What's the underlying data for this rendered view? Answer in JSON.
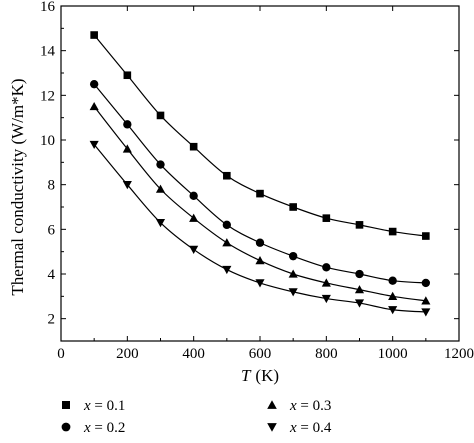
{
  "chart_data": {
    "type": "scatter",
    "title": "",
    "xlabel": {
      "var": "T",
      "unit": "(K)"
    },
    "ylabel": "Thermal conductivity (W/m*K)",
    "xlim": [
      0,
      1200
    ],
    "ylim": [
      1,
      16
    ],
    "xticks": [
      0,
      200,
      400,
      600,
      800,
      1000,
      1200
    ],
    "yticks": [
      2,
      4,
      6,
      8,
      10,
      12,
      14,
      16
    ],
    "grid": false,
    "legend_position": "bottom, outside plot",
    "has_fit_curves": true,
    "x": [
      100,
      200,
      300,
      400,
      500,
      600,
      700,
      800,
      900,
      1000,
      1100
    ],
    "series": [
      {
        "name": "x = 0.1",
        "var": "x",
        "eq": " = 0.1",
        "marker": "square",
        "values": [
          14.7,
          12.9,
          11.1,
          9.7,
          8.4,
          7.6,
          7.0,
          6.5,
          6.2,
          5.9,
          5.7
        ]
      },
      {
        "name": "x = 0.2",
        "var": "x",
        "eq": " = 0.2",
        "marker": "circle",
        "values": [
          12.5,
          10.7,
          8.9,
          7.5,
          6.2,
          5.4,
          4.8,
          4.3,
          4.0,
          3.7,
          3.6
        ]
      },
      {
        "name": "x = 0.3",
        "var": "x",
        "eq": " = 0.3",
        "marker": "triangle-up",
        "values": [
          11.5,
          9.6,
          7.8,
          6.5,
          5.4,
          4.6,
          4.0,
          3.6,
          3.3,
          3.0,
          2.8
        ]
      },
      {
        "name": "x = 0.4",
        "var": "x",
        "eq": " = 0.4",
        "marker": "triangle-down",
        "values": [
          9.8,
          8.0,
          6.3,
          5.1,
          4.2,
          3.6,
          3.2,
          2.9,
          2.7,
          2.4,
          2.3
        ]
      }
    ]
  },
  "colors": {
    "marks": "#000000",
    "background": "#ffffff"
  }
}
